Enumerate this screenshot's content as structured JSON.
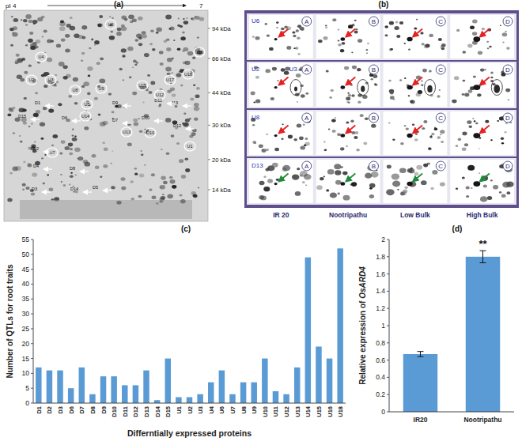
{
  "panel_labels": [
    "(a)",
    "(b)",
    "(c)",
    "(d)"
  ],
  "gel": {
    "pi_start": "pI 4",
    "pi_end": "7",
    "mw_markers": [
      {
        "value": 94,
        "label": "94 kDa"
      },
      {
        "value": 66,
        "label": "66 kDa"
      },
      {
        "value": 44,
        "label": "44 kDa"
      },
      {
        "value": 30,
        "label": "30 kDa"
      },
      {
        "value": 20,
        "label": "20 kDa"
      },
      {
        "value": 14,
        "label": "14 kDa"
      }
    ],
    "spots": [
      "U6",
      "U4",
      "U2",
      "U3",
      "U18",
      "U16",
      "U17",
      "U11",
      "U8",
      "U9",
      "U12",
      "D13",
      "D1",
      "D15",
      "U14",
      "D6",
      "D7",
      "D10",
      "D11",
      "U10",
      "U13",
      "D12",
      "U1",
      "U5",
      "D2",
      "U7",
      "D4",
      "D5",
      "D3",
      "D14",
      "D8",
      "D9"
    ]
  },
  "comparison": {
    "columns": [
      "A",
      "B",
      "C",
      "D"
    ],
    "samples": [
      "IR 20",
      "Nootripathu",
      "Low Bulk",
      "High Bulk"
    ],
    "rows": [
      {
        "labels": [
          "U6"
        ]
      },
      {
        "labels": [
          "U2",
          "U3"
        ]
      },
      {
        "labels": [
          "U8"
        ]
      },
      {
        "labels": [
          "D13"
        ]
      }
    ]
  },
  "chart_data": [
    {
      "type": "bar",
      "categories": [
        "D1",
        "D2",
        "D3",
        "D6",
        "D7",
        "D8",
        "D9",
        "D10",
        "D11",
        "D12",
        "D13",
        "D14",
        "D15",
        "U1",
        "U2",
        "U3",
        "U4",
        "U6",
        "U7",
        "U8",
        "U9",
        "U10",
        "U11",
        "U12",
        "U13",
        "U14",
        "U15",
        "U16",
        "U18"
      ],
      "values": [
        12,
        11,
        11,
        5,
        12,
        3,
        9,
        9,
        6,
        6,
        11,
        1,
        15,
        2,
        2,
        3,
        7,
        11,
        3,
        7,
        7,
        15,
        4,
        3,
        12,
        49,
        19,
        15,
        52
      ],
      "color": "#5b9bd5",
      "ylim": [
        0,
        55
      ],
      "yticks": [
        0,
        5,
        10,
        15,
        20,
        25,
        30,
        35,
        40,
        45,
        50,
        55
      ],
      "ylabel": "Number of QTLs for root traits",
      "xlabel": "Differntially expressed proteins",
      "grid": false
    },
    {
      "type": "bar",
      "categories": [
        "IR20",
        "Nootripathu"
      ],
      "values": [
        0.67,
        1.8
      ],
      "errors": [
        0.03,
        0.07
      ],
      "color": "#5b9bd5",
      "ylim": [
        0,
        2
      ],
      "yticks": [
        0,
        0.2,
        0.4,
        0.6,
        0.8,
        1,
        1.2,
        1.4,
        1.6,
        1.8,
        2
      ],
      "ylabel": "Relative expression of OsARD4",
      "annotations": [
        "**"
      ],
      "grid": false
    }
  ]
}
